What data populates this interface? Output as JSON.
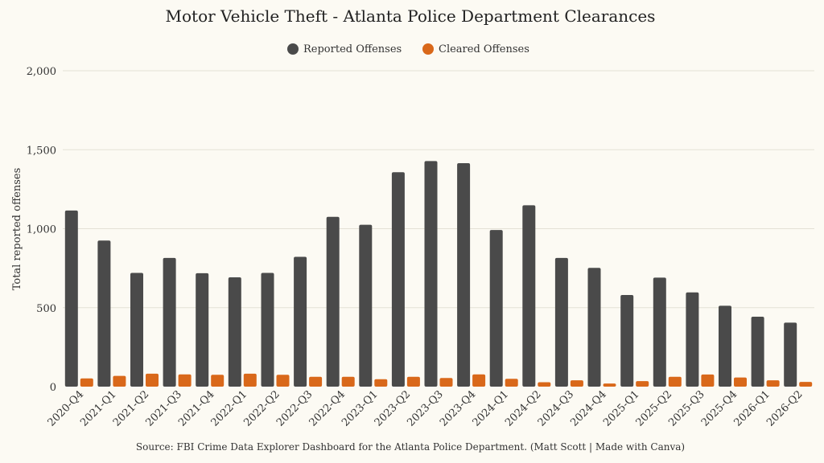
{
  "chart_data": {
    "type": "bar",
    "title": "Motor Vehicle Theft - Atlanta Police Department Clearances",
    "ylabel": "Total reported offenses",
    "xlabel": "",
    "ylim": [
      0,
      2000
    ],
    "yticks": [
      0,
      500,
      1000,
      1500,
      2000
    ],
    "ytick_labels": [
      "0",
      "500",
      "1,000",
      "1,500",
      "2,000"
    ],
    "grid": true,
    "legend_position": "top-center",
    "categories": [
      "2020-Q4",
      "2021-Q1",
      "2021-Q2",
      "2021-Q3",
      "2021-Q4",
      "2022-Q1",
      "2022-Q2",
      "2022-Q3",
      "2022-Q4",
      "2023-Q1",
      "2023-Q2",
      "2023-Q3",
      "2023-Q4",
      "2024-Q1",
      "2024-Q2",
      "2024-Q3",
      "2024-Q4",
      "2025-Q1",
      "2025-Q2",
      "2025-Q3",
      "2025-Q4",
      "2026-Q1",
      "2026-Q2"
    ],
    "series": [
      {
        "name": "Reported Offenses",
        "color": "#4a4a4a",
        "values": [
          1115,
          925,
          720,
          815,
          718,
          692,
          720,
          822,
          1075,
          1025,
          1358,
          1428,
          1415,
          992,
          1148,
          815,
          752,
          580,
          690,
          597,
          512,
          443,
          405
        ]
      },
      {
        "name": "Cleared Offenses",
        "color": "#d9681a",
        "values": [
          52,
          68,
          82,
          78,
          75,
          82,
          75,
          62,
          62,
          47,
          62,
          55,
          78,
          50,
          28,
          40,
          20,
          35,
          62,
          77,
          58,
          40,
          30
        ]
      }
    ],
    "source": "Source: FBI Crime Data Explorer Dashboard for the Atlanta Police Department. (Matt Scott | Made with Canva)"
  }
}
